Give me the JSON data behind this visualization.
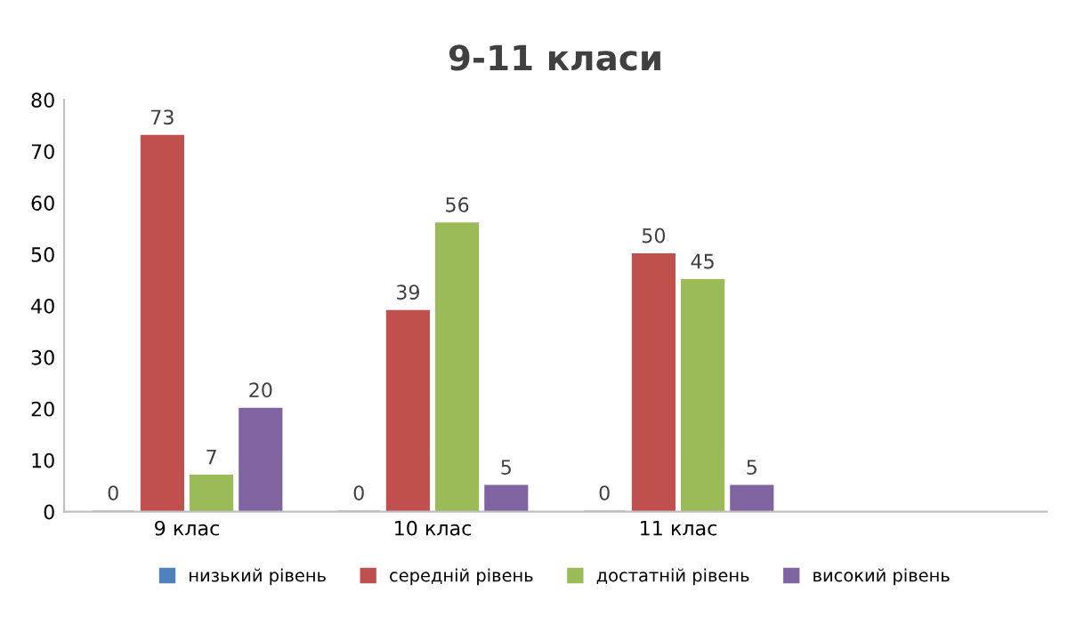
{
  "chart_data": {
    "type": "bar",
    "title": "9-11 класи",
    "categories": [
      "9 клас",
      "10 клас",
      "11 клас",
      null
    ],
    "series": [
      {
        "name": "низький рівень",
        "color": "#4f81bd",
        "values": [
          0,
          0,
          0,
          null
        ]
      },
      {
        "name": "середній рівень",
        "color": "#c0504d",
        "values": [
          73,
          39,
          50,
          null
        ]
      },
      {
        "name": "достатній рівень",
        "color": "#9bbb59",
        "values": [
          7,
          56,
          45,
          null
        ]
      },
      {
        "name": "високий рівень",
        "color": "#8064a2",
        "values": [
          20,
          5,
          5,
          null
        ]
      }
    ],
    "ylim": [
      0,
      80
    ],
    "yticks": [
      0,
      10,
      20,
      30,
      40,
      50,
      60,
      70,
      80
    ],
    "grid": false,
    "legend": "bottom",
    "data_labels": true
  }
}
